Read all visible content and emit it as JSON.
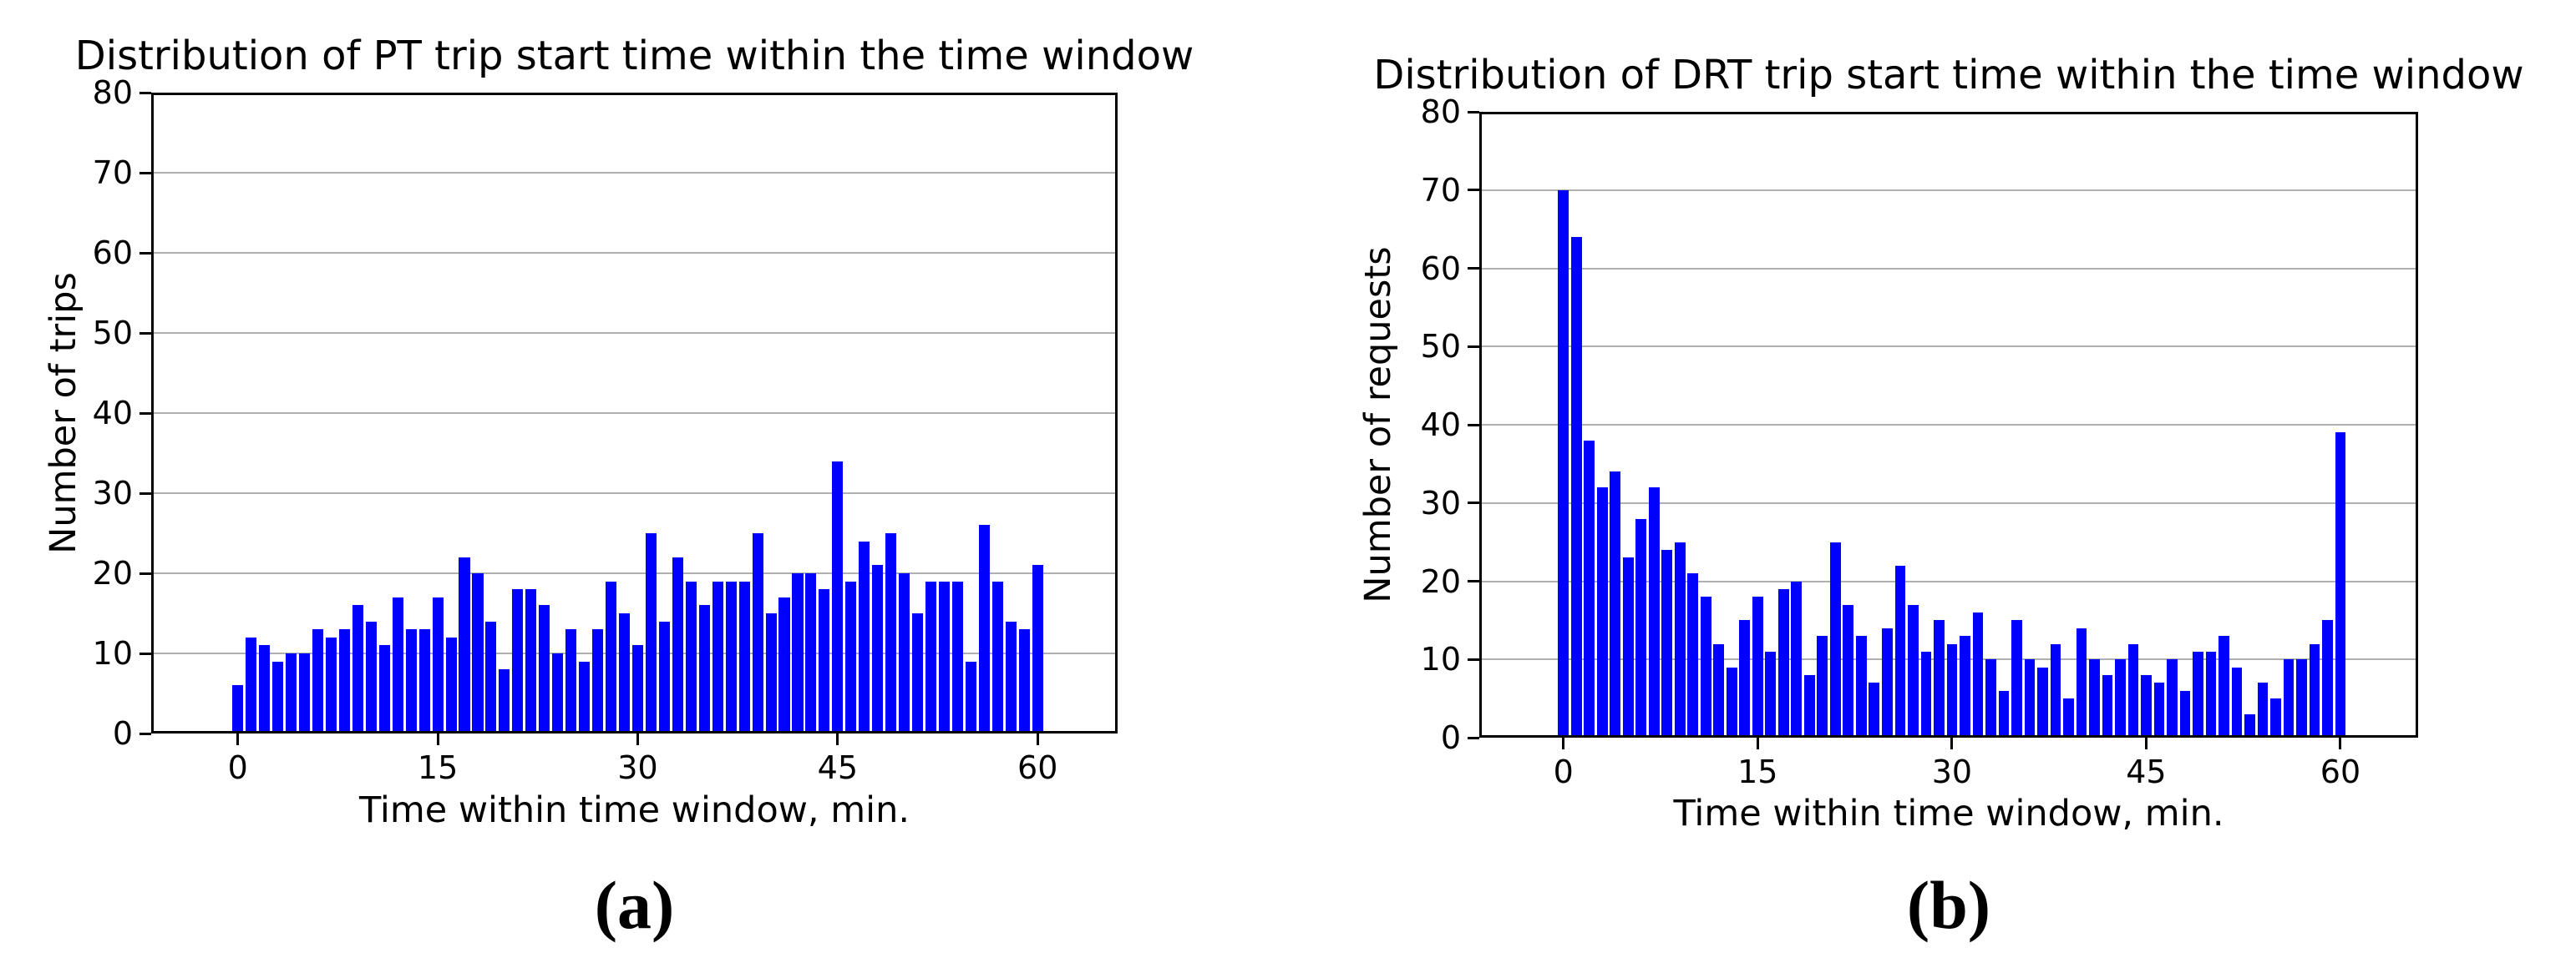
{
  "figure": {
    "background_color": "#ffffff",
    "bar_color": "#0000ff",
    "grid_color": "#b0b0b0",
    "spine_color": "#000000",
    "text_color": "#000000"
  },
  "chart_data": [
    {
      "id": "a",
      "type": "bar",
      "title": "Distribution of PT trip start time within the time window",
      "ylabel": "Number of trips",
      "xlabel": "Time within time window, min.",
      "caption": {
        "open": "(",
        "letter": "a",
        "close": ")"
      },
      "grid": "horizontal",
      "legend": "none",
      "xlim": [
        -6.5,
        66
      ],
      "ylim": [
        0,
        80
      ],
      "xticks": [
        0,
        15,
        30,
        45,
        60
      ],
      "yticks": [
        0,
        10,
        20,
        30,
        40,
        50,
        60,
        70,
        80
      ],
      "bin_start": 0,
      "bin_width": 1,
      "bar_width_units": 0.82,
      "values": [
        6,
        12,
        11,
        9,
        10,
        10,
        13,
        12,
        13,
        16,
        14,
        11,
        17,
        13,
        13,
        17,
        12,
        22,
        20,
        14,
        8,
        18,
        18,
        16,
        10,
        13,
        9,
        13,
        19,
        15,
        11,
        25,
        14,
        22,
        19,
        16,
        19,
        19,
        19,
        25,
        15,
        17,
        20,
        20,
        18,
        34,
        19,
        24,
        21,
        25,
        20,
        15,
        19,
        19,
        19,
        9,
        26,
        19,
        14,
        13,
        21
      ]
    },
    {
      "id": "b",
      "type": "bar",
      "title": "Distribution of DRT trip start time within the time window",
      "ylabel": "Number of requests",
      "xlabel": "Time within time window, min.",
      "caption": {
        "open": "(",
        "letter": "b",
        "close": ")"
      },
      "grid": "horizontal",
      "legend": "none",
      "xlim": [
        -6.5,
        66
      ],
      "ylim": [
        0,
        80
      ],
      "xticks": [
        0,
        15,
        30,
        45,
        60
      ],
      "yticks": [
        0,
        10,
        20,
        30,
        40,
        50,
        60,
        70,
        80
      ],
      "bin_start": 0,
      "bin_width": 1,
      "bar_width_units": 0.82,
      "values": [
        70,
        64,
        38,
        32,
        34,
        23,
        28,
        32,
        24,
        25,
        21,
        18,
        12,
        9,
        15,
        18,
        11,
        19,
        20,
        8,
        13,
        25,
        17,
        13,
        7,
        14,
        22,
        17,
        11,
        15,
        12,
        13,
        16,
        10,
        6,
        15,
        10,
        9,
        12,
        5,
        14,
        10,
        8,
        10,
        12,
        8,
        7,
        10,
        6,
        11,
        11,
        13,
        9,
        3,
        7,
        5,
        10,
        10,
        12,
        15,
        39
      ]
    }
  ]
}
